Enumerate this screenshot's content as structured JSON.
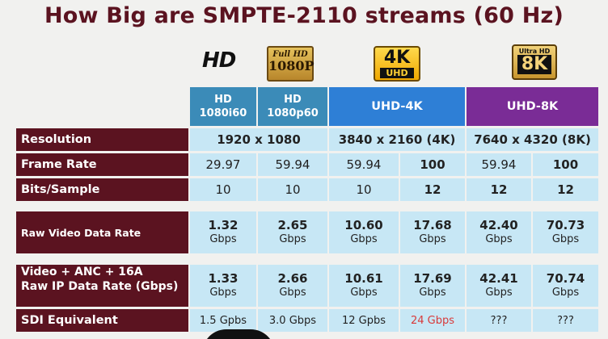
{
  "title": "How Big are SMPTE-2110 streams (60 Hz)",
  "logos": {
    "hd": "HD",
    "fullhd_top": "Full HD",
    "fullhd_bottom": "1080P",
    "uhd4k_top": "4K",
    "uhd4k_bottom": "UHD",
    "uhd8k_top": "Ultra HD",
    "uhd8k_bottom": "8K"
  },
  "headers": {
    "hd1080i60": [
      "HD",
      "1080i60"
    ],
    "hd1080p60": [
      "HD",
      "1080p60"
    ],
    "uhd4k": "UHD-4K",
    "uhd8k": "UHD-8K"
  },
  "rows": {
    "resolution": {
      "label": "Resolution",
      "hd": "1920 x 1080",
      "uhd4k": "3840 x 2160 (4K)",
      "uhd8k": "7640 x 4320 (8K)"
    },
    "frame_rate": {
      "label": "Frame Rate",
      "values": [
        "29.97",
        "59.94",
        "59.94",
        "100",
        "59.94",
        "100"
      ]
    },
    "bits_sample": {
      "label": "Bits/Sample",
      "values": [
        "10",
        "10",
        "10",
        "12",
        "12",
        "12"
      ]
    },
    "raw_video": {
      "label": "Raw Video Data Rate",
      "values": [
        "1.32",
        "2.65",
        "10.60",
        "17.68",
        "42.40",
        "70.73"
      ],
      "unit": "Gbps"
    },
    "ip_rate": {
      "label_1": "Video + ANC + 16A",
      "label_2": "Raw IP Data Rate (Gbps)",
      "values": [
        "1.33",
        "2.66",
        "10.61",
        "17.69",
        "42.41",
        "70.74"
      ],
      "unit": "Gbps"
    },
    "sdi": {
      "label": "SDI Equivalent",
      "values": [
        "1.5 Gpbs",
        "3.0 Gbps",
        "12 Gpbs",
        "24 Gbps",
        "???",
        "???"
      ]
    }
  }
}
